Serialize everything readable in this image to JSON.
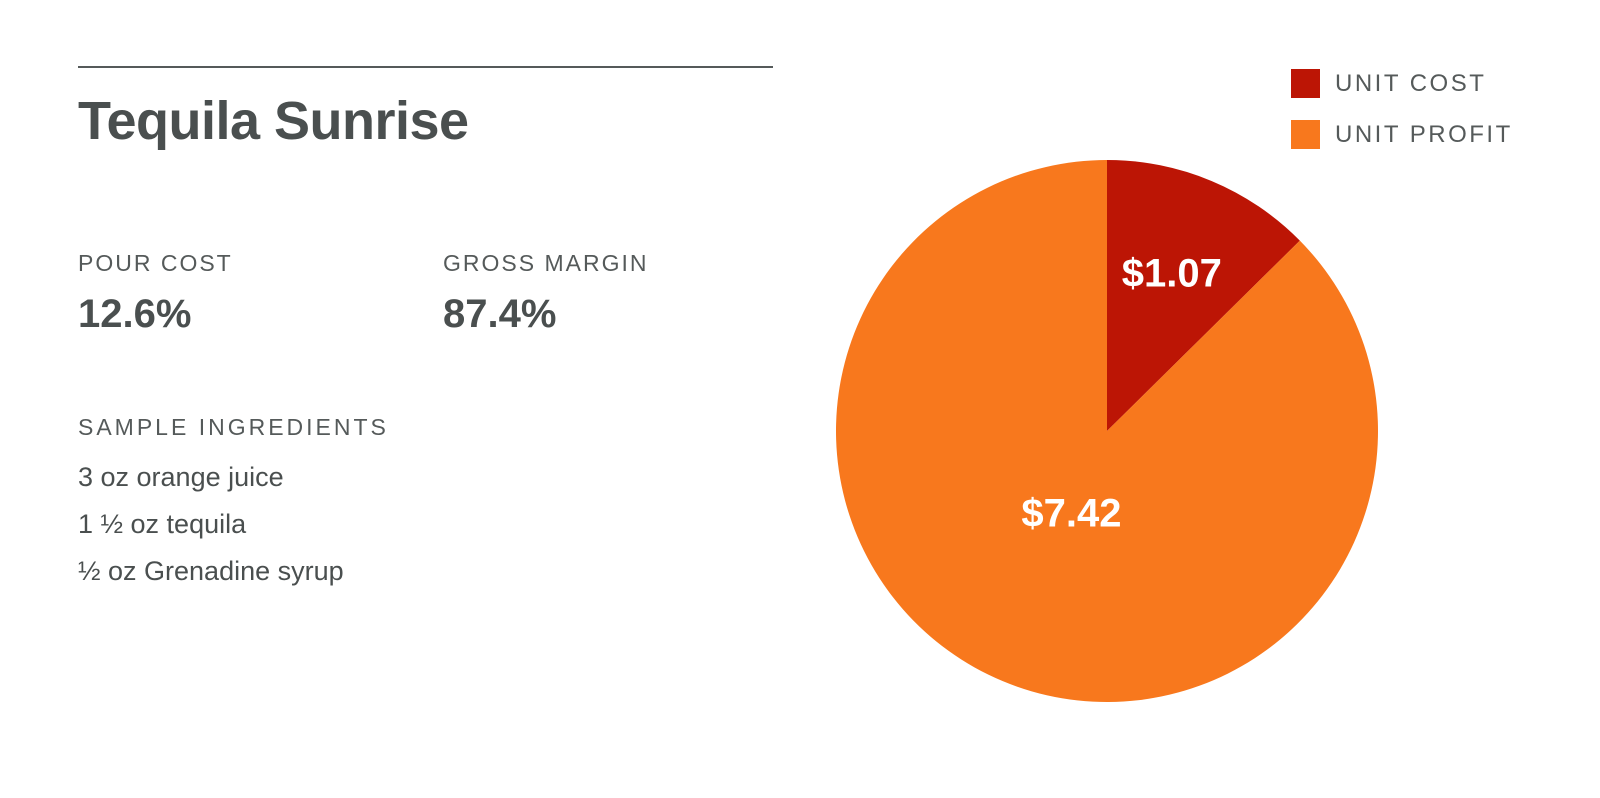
{
  "title": "Tequila Sunrise",
  "metrics": [
    {
      "label": "POUR COST",
      "value": "12.6%"
    },
    {
      "label": "GROSS MARGIN",
      "value": "87.4%"
    }
  ],
  "ingredients": {
    "label": "SAMPLE INGREDIENTS",
    "items": [
      "3 oz orange juice",
      "1 ½ oz tequila",
      "½ oz Grenadine syrup"
    ]
  },
  "chart_data": {
    "type": "pie",
    "title": "",
    "legend_position": "top-right",
    "slices": [
      {
        "name": "UNIT COST",
        "value": 1.07,
        "label": "$1.07",
        "color": "#bc1505"
      },
      {
        "name": "UNIT PROFIT",
        "value": 7.42,
        "label": "$7.42",
        "color": "#f8781d"
      }
    ],
    "start_angle": "12 o'clock",
    "direction": "clockwise"
  }
}
